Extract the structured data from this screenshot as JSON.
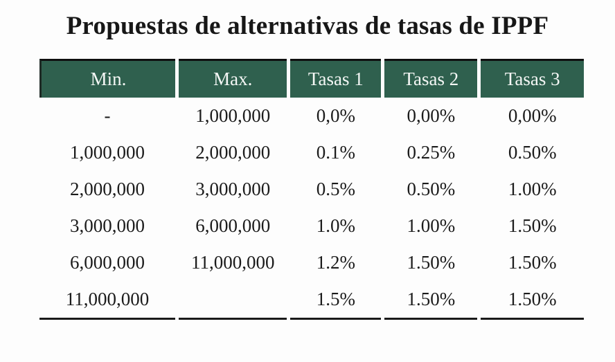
{
  "title": "Propuestas de alternativas de tasas de IPPF",
  "colors": {
    "header_bg": "#2F604E",
    "header_text": "#F4F7F5",
    "top_border": "#0F0F0F",
    "bottom_border": "#191919",
    "body_text": "#1B1B1B",
    "background": "#FDFDFD"
  },
  "table": {
    "columns": [
      "Min.",
      "Max.",
      "Tasas 1",
      "Tasas 2",
      "Tasas 3"
    ],
    "rows": [
      [
        "-",
        "1,000,000",
        "0,0%",
        "0,00%",
        "0,00%"
      ],
      [
        "1,000,000",
        "2,000,000",
        "0.1%",
        "0.25%",
        "0.50%"
      ],
      [
        "2,000,000",
        "3,000,000",
        "0.5%",
        "0.50%",
        "1.00%"
      ],
      [
        "3,000,000",
        "6,000,000",
        "1.0%",
        "1.00%",
        "1.50%"
      ],
      [
        "6,000,000",
        "11,000,000",
        "1.2%",
        "1.50%",
        "1.50%"
      ],
      [
        "11,000,000",
        "",
        "1.5%",
        "1.50%",
        "1.50%"
      ]
    ]
  },
  "chart_data": {
    "type": "table",
    "title": "Propuestas de alternativas de tasas de IPPF",
    "columns": [
      "Min.",
      "Max.",
      "Tasas 1",
      "Tasas 2",
      "Tasas 3"
    ],
    "rows": [
      {
        "min": null,
        "max": 1000000,
        "tasas1_pct": 0.0,
        "tasas2_pct": 0.0,
        "tasas3_pct": 0.0
      },
      {
        "min": 1000000,
        "max": 2000000,
        "tasas1_pct": 0.1,
        "tasas2_pct": 0.25,
        "tasas3_pct": 0.5
      },
      {
        "min": 2000000,
        "max": 3000000,
        "tasas1_pct": 0.5,
        "tasas2_pct": 0.5,
        "tasas3_pct": 1.0
      },
      {
        "min": 3000000,
        "max": 6000000,
        "tasas1_pct": 1.0,
        "tasas2_pct": 1.0,
        "tasas3_pct": 1.5
      },
      {
        "min": 6000000,
        "max": 11000000,
        "tasas1_pct": 1.2,
        "tasas2_pct": 1.5,
        "tasas3_pct": 1.5
      },
      {
        "min": 11000000,
        "max": null,
        "tasas1_pct": 1.5,
        "tasas2_pct": 1.5,
        "tasas3_pct": 1.5
      }
    ],
    "layout": {
      "header_background": "#2F604E",
      "header_text_color": "#FFFFFF",
      "gridlines": false
    }
  }
}
